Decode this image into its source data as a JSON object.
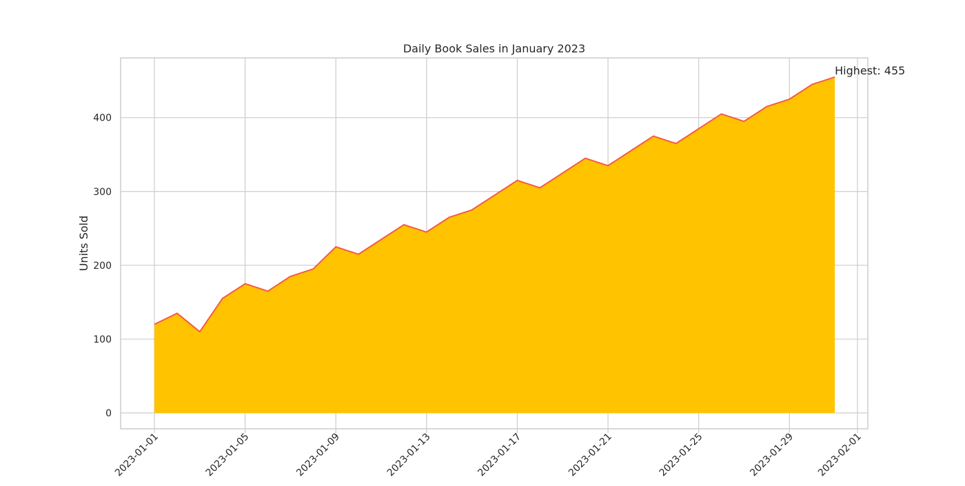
{
  "chart_data": {
    "type": "area",
    "title": "Daily Book Sales in January 2023",
    "xlabel": "",
    "ylabel": "Units Sold",
    "x": [
      "2023-01-01",
      "2023-01-02",
      "2023-01-03",
      "2023-01-04",
      "2023-01-05",
      "2023-01-06",
      "2023-01-07",
      "2023-01-08",
      "2023-01-09",
      "2023-01-10",
      "2023-01-11",
      "2023-01-12",
      "2023-01-13",
      "2023-01-14",
      "2023-01-15",
      "2023-01-16",
      "2023-01-17",
      "2023-01-18",
      "2023-01-19",
      "2023-01-20",
      "2023-01-21",
      "2023-01-22",
      "2023-01-23",
      "2023-01-24",
      "2023-01-25",
      "2023-01-26",
      "2023-01-27",
      "2023-01-28",
      "2023-01-29",
      "2023-01-30",
      "2023-01-31"
    ],
    "series": [
      {
        "values": [
          120,
          135,
          110,
          155,
          175,
          165,
          185,
          195,
          225,
          215,
          235,
          255,
          245,
          265,
          275,
          295,
          315,
          305,
          325,
          345,
          335,
          355,
          375,
          365,
          385,
          405,
          395,
          415,
          425,
          445,
          455
        ]
      }
    ],
    "xlim": [
      "2023-01-01",
      "2023-02-01"
    ],
    "ylim": [
      0,
      480
    ],
    "x_ticks": [
      "2023-01-01",
      "2023-01-05",
      "2023-01-09",
      "2023-01-13",
      "2023-01-17",
      "2023-01-21",
      "2023-01-25",
      "2023-01-29",
      "2023-02-01"
    ],
    "y_ticks": [
      0,
      100,
      200,
      300,
      400
    ],
    "grid": true,
    "annotation": {
      "text": "Highest: 455",
      "x": "2023-01-31",
      "y": 455
    },
    "colors": {
      "fill": "#ffc300",
      "line": "#f55a44",
      "grid": "#cccccc",
      "spine": "#cccccc"
    }
  }
}
